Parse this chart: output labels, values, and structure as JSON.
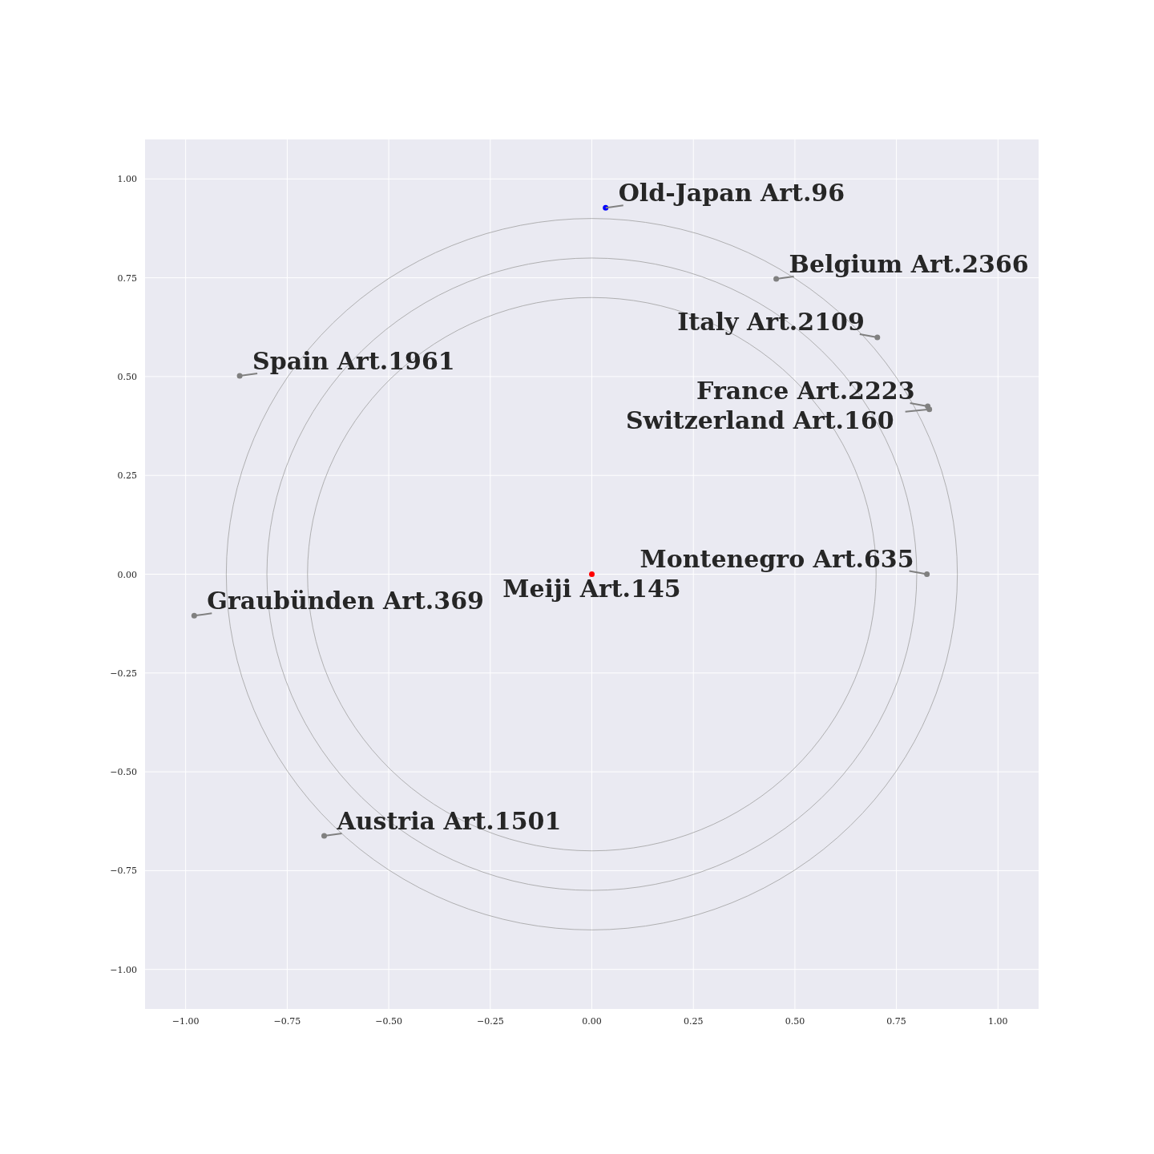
{
  "chart_data": {
    "type": "scatter",
    "xlim": [
      -1.1,
      1.1
    ],
    "ylim": [
      -1.1,
      1.1
    ],
    "grid": true,
    "marker": "circle",
    "xticks": [
      {
        "value": -1,
        "label": "−1.00"
      },
      {
        "value": -0.75,
        "label": "−0.75"
      },
      {
        "value": -0.5,
        "label": "−0.50"
      },
      {
        "value": -0.25,
        "label": "−0.25"
      },
      {
        "value": 0,
        "label": "0.00"
      },
      {
        "value": 0.25,
        "label": "0.25"
      },
      {
        "value": 0.5,
        "label": "0.50"
      },
      {
        "value": 0.75,
        "label": "0.75"
      },
      {
        "value": 1,
        "label": "1.00"
      }
    ],
    "yticks": [
      {
        "value": -1,
        "label": "−1.00"
      },
      {
        "value": -0.75,
        "label": "−0.75"
      },
      {
        "value": -0.5,
        "label": "−0.50"
      },
      {
        "value": -0.25,
        "label": "−0.25"
      },
      {
        "value": 0,
        "label": "0.00"
      },
      {
        "value": 0.25,
        "label": "0.25"
      },
      {
        "value": 0.5,
        "label": "0.50"
      },
      {
        "value": 0.75,
        "label": "0.75"
      },
      {
        "value": 1,
        "label": "1.00"
      }
    ],
    "series": [
      {
        "x": [
          0.034,
          0.454,
          0.703,
          0.827,
          0.831,
          -0.867,
          0.825,
          0,
          -0.979,
          -0.659
        ],
        "values": [
          0.927,
          0.747,
          0.599,
          0.425,
          0.417,
          0.502,
          0,
          0,
          -0.105,
          -0.662
        ],
        "colors": [
          "#0000ff",
          "#808080",
          "#808080",
          "#808080",
          "#808080",
          "#808080",
          "#808080",
          "#ff0000",
          "#808080",
          "#808080"
        ]
      }
    ],
    "annotations": [
      {
        "text": "Old-Japan Art.96",
        "x": 0.034,
        "y": 0.927
      },
      {
        "text": "Belgium Art.2366",
        "x": 0.454,
        "y": 0.747
      },
      {
        "text": "Italy Art.2109",
        "x": 0.703,
        "y": 0.599
      },
      {
        "text": "France Art.2223",
        "x": 0.827,
        "y": 0.425
      },
      {
        "text": "Switzerland Art.160",
        "x": 0.831,
        "y": 0.417
      },
      {
        "text": "Spain Art.1961",
        "x": -0.867,
        "y": 0.502
      },
      {
        "text": "Montenegro Art.635",
        "x": 0.825,
        "y": 0
      },
      {
        "text": "Meiji Art.145",
        "x": 0,
        "y": 0
      },
      {
        "text": "Graubünden Art.369",
        "x": -0.979,
        "y": -0.105
      },
      {
        "text": "Austria Art.1501",
        "x": -0.659,
        "y": -0.662
      }
    ]
  }
}
